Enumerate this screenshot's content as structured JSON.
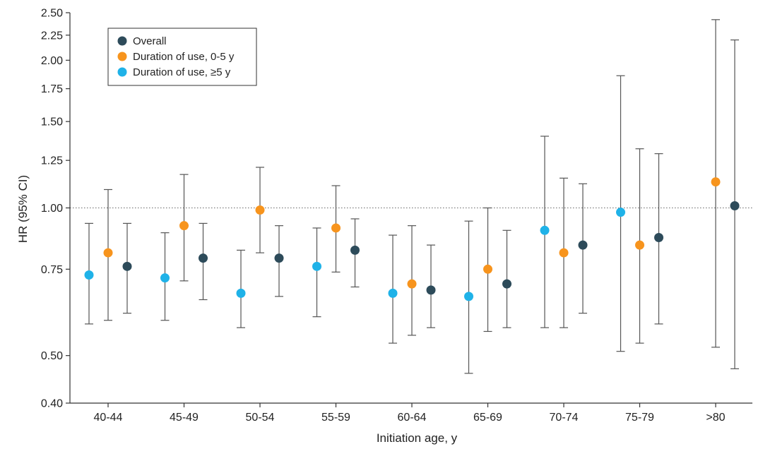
{
  "colors": {
    "overall": "#2d4b5a",
    "short": "#f7941d",
    "long": "#1fb2e8",
    "errorbar": "#555555",
    "axis": "#333333",
    "refline": "#666666"
  },
  "chart_data": {
    "type": "scatter",
    "title": "",
    "xlabel": "Initiation age, y",
    "ylabel": "HR (95% CI)",
    "y_scale": "log",
    "ylim": [
      0.4,
      2.5
    ],
    "yticks": [
      0.4,
      0.5,
      0.75,
      1.0,
      1.25,
      1.5,
      1.75,
      2.0,
      2.25,
      2.5
    ],
    "ytick_labels": [
      "0.40",
      "0.50",
      "0.75",
      "1.00",
      "1.25",
      "1.50",
      "1.75",
      "2.00",
      "2.25",
      "2.50"
    ],
    "reference_line": 1.0,
    "categories": [
      "40-44",
      "45-49",
      "50-54",
      "55-59",
      "60-64",
      "65-69",
      "70-74",
      "75-79",
      ">80"
    ],
    "legend_position": "top-left",
    "series": [
      {
        "key": "long",
        "name": "Duration of use, ≥5 y",
        "points": [
          {
            "hr": 0.73,
            "lo": 0.58,
            "hi": 0.93
          },
          {
            "hr": 0.72,
            "lo": 0.59,
            "hi": 0.89
          },
          {
            "hr": 0.67,
            "lo": 0.57,
            "hi": 0.82
          },
          {
            "hr": 0.76,
            "lo": 0.6,
            "hi": 0.91
          },
          {
            "hr": 0.67,
            "lo": 0.53,
            "hi": 0.88
          },
          {
            "hr": 0.66,
            "lo": 0.46,
            "hi": 0.94
          },
          {
            "hr": 0.9,
            "lo": 0.57,
            "hi": 1.4
          },
          {
            "hr": 0.98,
            "lo": 0.51,
            "hi": 1.86
          },
          null
        ]
      },
      {
        "key": "short",
        "name": "Duration of use, 0-5 y",
        "points": [
          {
            "hr": 0.81,
            "lo": 0.59,
            "hi": 1.09
          },
          {
            "hr": 0.92,
            "lo": 0.71,
            "hi": 1.17
          },
          {
            "hr": 0.99,
            "lo": 0.81,
            "hi": 1.21
          },
          {
            "hr": 0.91,
            "lo": 0.74,
            "hi": 1.11
          },
          {
            "hr": 0.7,
            "lo": 0.55,
            "hi": 0.92
          },
          {
            "hr": 0.75,
            "lo": 0.56,
            "hi": 1.0
          },
          {
            "hr": 0.81,
            "lo": 0.57,
            "hi": 1.15
          },
          {
            "hr": 0.84,
            "lo": 0.53,
            "hi": 1.32
          },
          {
            "hr": 1.13,
            "lo": 0.52,
            "hi": 2.42
          }
        ]
      },
      {
        "key": "overall",
        "name": "Overall",
        "points": [
          {
            "hr": 0.76,
            "lo": 0.61,
            "hi": 0.93
          },
          {
            "hr": 0.79,
            "lo": 0.65,
            "hi": 0.93
          },
          {
            "hr": 0.79,
            "lo": 0.66,
            "hi": 0.92
          },
          {
            "hr": 0.82,
            "lo": 0.69,
            "hi": 0.95
          },
          {
            "hr": 0.68,
            "lo": 0.57,
            "hi": 0.84
          },
          {
            "hr": 0.7,
            "lo": 0.57,
            "hi": 0.9
          },
          {
            "hr": 0.84,
            "lo": 0.61,
            "hi": 1.12
          },
          {
            "hr": 0.87,
            "lo": 0.58,
            "hi": 1.29
          },
          {
            "hr": 1.01,
            "lo": 0.47,
            "hi": 2.2
          }
        ]
      }
    ],
    "legend_order": [
      "overall",
      "short",
      "long"
    ]
  }
}
